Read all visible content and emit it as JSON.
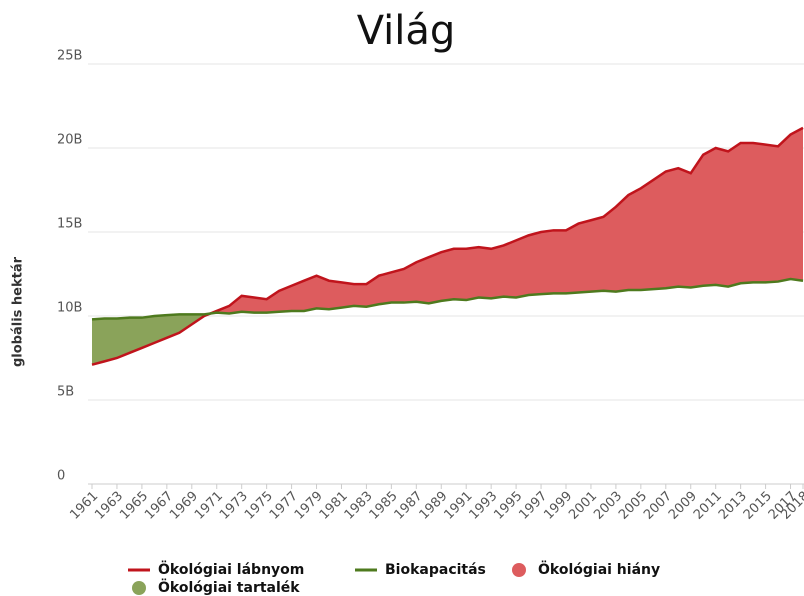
{
  "chart_data": {
    "type": "line",
    "title": "Világ",
    "ylabel": "globális hektár",
    "x": [
      1961,
      1962,
      1963,
      1964,
      1965,
      1966,
      1967,
      1968,
      1969,
      1970,
      1971,
      1972,
      1973,
      1974,
      1975,
      1976,
      1977,
      1978,
      1979,
      1980,
      1981,
      1982,
      1983,
      1984,
      1985,
      1986,
      1987,
      1988,
      1989,
      1990,
      1991,
      1992,
      1993,
      1994,
      1995,
      1996,
      1997,
      1998,
      1999,
      2000,
      2001,
      2002,
      2003,
      2004,
      2005,
      2006,
      2007,
      2008,
      2009,
      2010,
      2011,
      2012,
      2013,
      2014,
      2015,
      2016,
      2017,
      2018
    ],
    "series": [
      {
        "name": "Ökológiai lábnyom",
        "color": "#c0141c",
        "values": [
          7.1,
          7.3,
          7.5,
          7.8,
          8.1,
          8.4,
          8.7,
          9.0,
          9.5,
          10.0,
          10.3,
          10.6,
          11.2,
          11.1,
          11.0,
          11.5,
          11.8,
          12.1,
          12.4,
          12.1,
          12.0,
          11.9,
          11.9,
          12.4,
          12.6,
          12.8,
          13.2,
          13.5,
          13.8,
          14.0,
          14.0,
          14.1,
          14.0,
          14.2,
          14.5,
          14.8,
          15.0,
          15.1,
          15.1,
          15.5,
          15.7,
          15.9,
          16.5,
          17.2,
          17.6,
          18.1,
          18.6,
          18.8,
          18.5,
          19.6,
          20.0,
          19.8,
          20.3,
          20.3,
          20.2,
          20.1,
          20.8,
          21.2
        ]
      },
      {
        "name": "Biokapacitás",
        "color": "#4e7a1e",
        "values": [
          9.8,
          9.85,
          9.85,
          9.9,
          9.9,
          10.0,
          10.05,
          10.1,
          10.1,
          10.1,
          10.2,
          10.15,
          10.25,
          10.2,
          10.2,
          10.25,
          10.3,
          10.3,
          10.45,
          10.4,
          10.5,
          10.6,
          10.55,
          10.7,
          10.8,
          10.8,
          10.85,
          10.75,
          10.9,
          11.0,
          10.95,
          11.1,
          11.05,
          11.15,
          11.1,
          11.25,
          11.3,
          11.35,
          11.35,
          11.4,
          11.45,
          11.5,
          11.45,
          11.55,
          11.55,
          11.6,
          11.65,
          11.75,
          11.7,
          11.8,
          11.85,
          11.75,
          11.95,
          12.0,
          12.0,
          12.05,
          12.2,
          12.1
        ]
      }
    ],
    "areas": [
      {
        "name": "Ökológiai hiány",
        "color": "#dd5c5e"
      },
      {
        "name": "Ökológiai tartalék",
        "color": "#8aa35a"
      }
    ],
    "xlim": [
      1961,
      2018
    ],
    "xticks": [
      1961,
      1963,
      1965,
      1967,
      1969,
      1971,
      1973,
      1975,
      1977,
      1979,
      1981,
      1983,
      1985,
      1987,
      1989,
      1991,
      1993,
      1995,
      1997,
      1999,
      2001,
      2003,
      2005,
      2007,
      2009,
      2011,
      2013,
      2015,
      2017,
      2018
    ],
    "ylim": [
      0,
      25
    ],
    "yticks": [
      0,
      {
        "value": 5,
        "label": "5B"
      },
      {
        "value": 10,
        "label": "10B"
      },
      {
        "value": 15,
        "label": "15B"
      },
      {
        "value": 20,
        "label": "20B"
      },
      {
        "value": 25,
        "label": "25B"
      }
    ],
    "grid": true,
    "legend": "bottom"
  }
}
